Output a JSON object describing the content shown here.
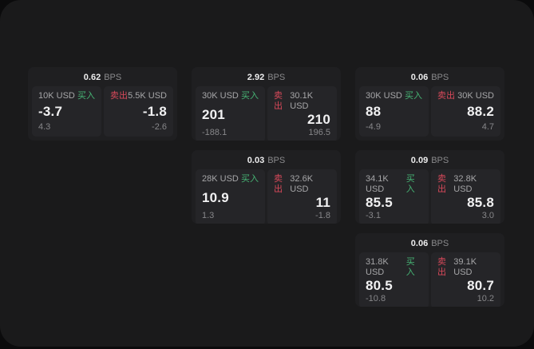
{
  "app": {
    "background": "#0b0b0c",
    "panel_background": "#1a1a1b",
    "card_background": "#1f1f21",
    "tile_background": "#252528"
  },
  "colors": {
    "buy_accent": "#46b474",
    "sell_accent": "#d8495a",
    "primary_text": "#f1f1f2",
    "muted_text": "#8a8a8c"
  },
  "cards": [
    {
      "bps": "0.62",
      "unit": "BPS",
      "buy": {
        "notional": "10K USD",
        "side_label": "买入",
        "price": "-3.7",
        "change": "4.3"
      },
      "sell": {
        "side_label": "卖出",
        "notional": "5.5K USD",
        "price": "-1.8",
        "change": "-2.6"
      }
    },
    {
      "bps": "2.92",
      "unit": "BPS",
      "buy": {
        "notional": "30K USD",
        "side_label": "买入",
        "price": "201",
        "change": "-188.1"
      },
      "sell": {
        "side_label": "卖出",
        "notional": "30.1K USD",
        "price": "210",
        "change": "196.5"
      }
    },
    {
      "bps": "0.06",
      "unit": "BPS",
      "buy": {
        "notional": "30K USD",
        "side_label": "买入",
        "price": "88",
        "change": "-4.9"
      },
      "sell": {
        "side_label": "卖出",
        "notional": "30K USD",
        "price": "88.2",
        "change": "4.7"
      }
    },
    {
      "bps": "0.03",
      "unit": "BPS",
      "buy": {
        "notional": "28K USD",
        "side_label": "买入",
        "price": "10.9",
        "change": "1.3"
      },
      "sell": {
        "side_label": "卖出",
        "notional": "32.6K USD",
        "price": "11",
        "change": "-1.8"
      }
    },
    {
      "bps": "0.09",
      "unit": "BPS",
      "buy": {
        "notional": "34.1K USD",
        "side_label": "买入",
        "price": "85.5",
        "change": "-3.1"
      },
      "sell": {
        "side_label": "卖出",
        "notional": "32.8K USD",
        "price": "85.8",
        "change": "3.0"
      }
    },
    {
      "bps": "0.06",
      "unit": "BPS",
      "buy": {
        "notional": "31.8K USD",
        "side_label": "买入",
        "price": "80.5",
        "change": "-10.8"
      },
      "sell": {
        "side_label": "卖出",
        "notional": "39.1K USD",
        "price": "80.7",
        "change": "10.2"
      }
    }
  ]
}
